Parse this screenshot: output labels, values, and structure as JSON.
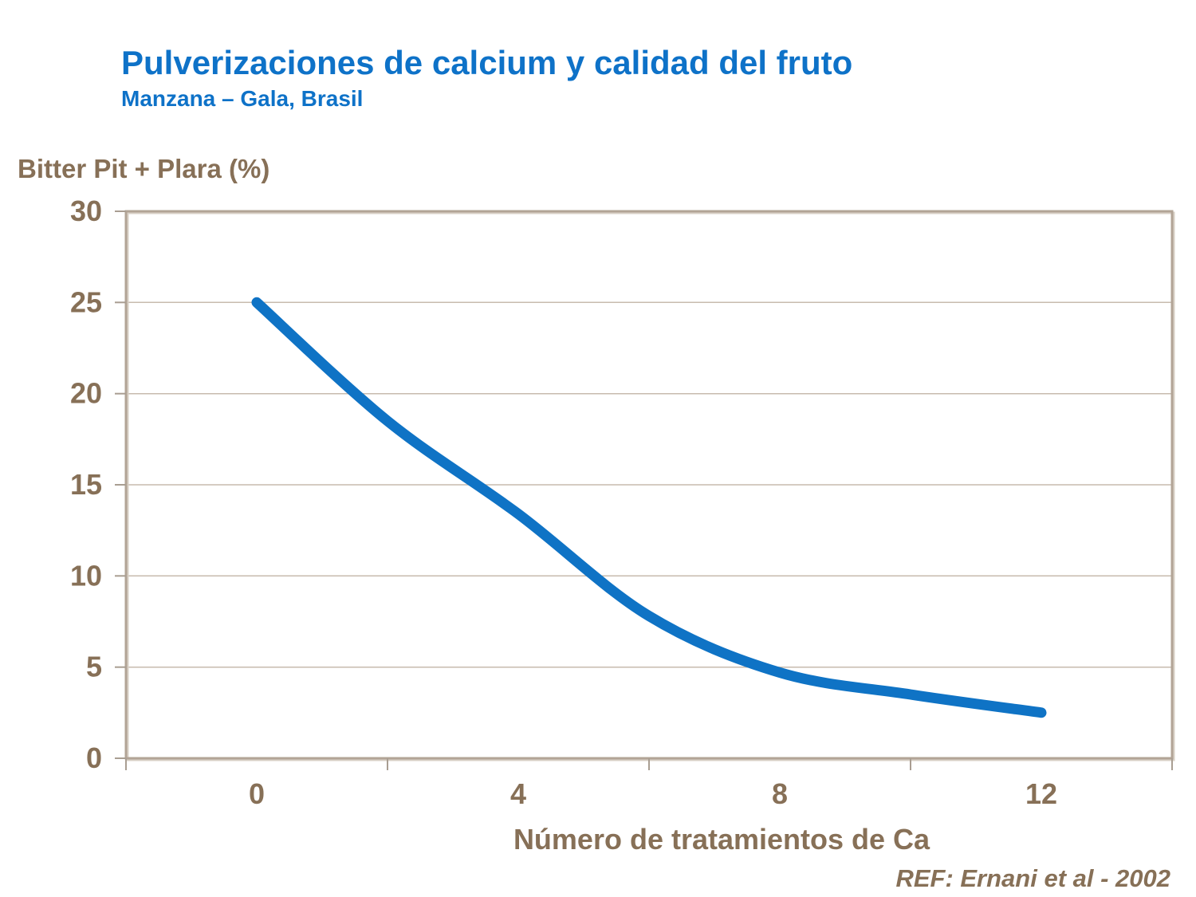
{
  "slide": {
    "title": "Pulverizaciones de calcium y calidad del fruto",
    "subtitle": "Manzana – Gala, Brasil",
    "reference": "REF: Ernani et al - 2002"
  },
  "colors": {
    "title_blue": "#0e72c8",
    "line_blue": "#0f73c5",
    "axis_text_brown": "#877057",
    "plot_border": "#b2a496",
    "plot_border_light": "#d8d0c6",
    "gridline": "#c7bbae",
    "tick": "#a99e92",
    "background": "#ffffff"
  },
  "chart_data": {
    "type": "line",
    "title": "Pulverizaciones de calcium y calidad del fruto",
    "subtitle": "Manzana – Gala, Brasil",
    "series": [
      {
        "name": "Bitter Pit + Plara (%)",
        "x": [
          0,
          2,
          4,
          6,
          8,
          10,
          12
        ],
        "values": [
          25,
          18.5,
          13.4,
          7.8,
          4.7,
          3.5,
          2.5
        ]
      }
    ],
    "xlabel": "Número de tratamientos de Ca",
    "ylabel": "Bitter Pit + Plara (%)",
    "xlim": [
      -2,
      14
    ],
    "ylim": [
      0,
      30
    ],
    "x_tick_labels": [
      0,
      4,
      8,
      12
    ],
    "x_boundary_ticks": [
      -2,
      2,
      6,
      10,
      14
    ],
    "y_ticks": [
      30,
      25,
      20,
      15,
      10,
      5,
      0
    ],
    "gridline_values": [
      25,
      20,
      15,
      10,
      5
    ],
    "grid": "horizontal",
    "legend": "none",
    "smooth": true,
    "line_width": 13
  }
}
